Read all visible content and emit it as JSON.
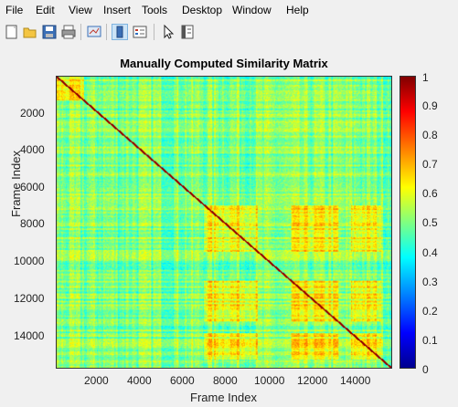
{
  "menu": [
    "File",
    "Edit",
    "View",
    "Insert",
    "Tools",
    "Desktop",
    "Window",
    "Help"
  ],
  "toolbar": {
    "icons": [
      "new-figure-icon",
      "open-file-icon",
      "save-icon",
      "print-icon",
      "link-plot-icon",
      "toggle-colorbar-icon",
      "insert-legend-icon",
      "pointer-icon",
      "property-editor-icon"
    ]
  },
  "chart_data": {
    "type": "heatmap",
    "title": "Manually Computed Similarity Matrix",
    "xlabel": "Frame Index",
    "ylabel": "Frame Index",
    "x_ticks": [
      "2000",
      "4000",
      "6000",
      "8000",
      "10000",
      "12000",
      "14000"
    ],
    "y_ticks": [
      "2000",
      "4000",
      "6000",
      "8000",
      "10000",
      "12000",
      "14000"
    ],
    "colorbar_ticks": [
      "1",
      "0.9",
      "0.8",
      "0.7",
      "0.6",
      "0.5",
      "0.4",
      "0.3",
      "0.2",
      "0.1",
      "0"
    ],
    "xlim": [
      1,
      15800
    ],
    "ylim": [
      1,
      15800
    ],
    "clim": [
      0,
      1
    ],
    "colormap": "jet",
    "description_values": "dense similarity values mostly 0.45–0.75 (cyan to yellow), red diagonal = 1"
  }
}
